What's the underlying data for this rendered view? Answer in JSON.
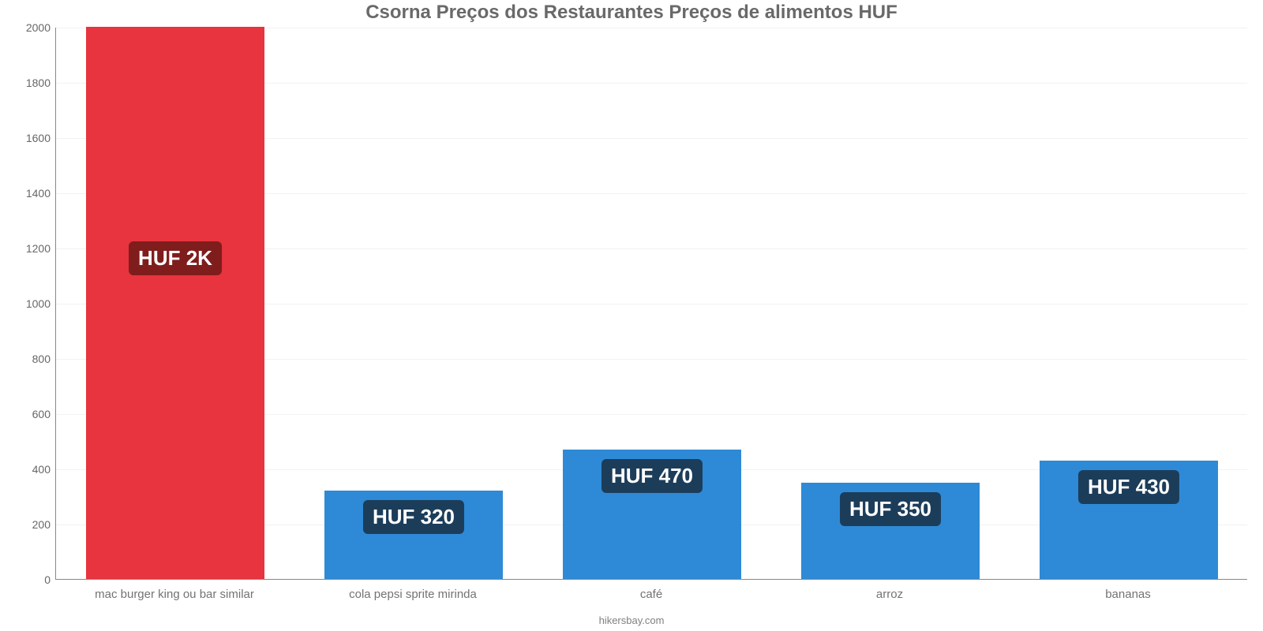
{
  "chart": {
    "type": "bar",
    "title": "Csorna Preços dos Restaurantes Preços de alimentos HUF",
    "title_fontsize": 24,
    "title_color": "#696969",
    "footer": "hikersbay.com",
    "footer_fontsize": 13,
    "footer_color": "#808080",
    "background_color": "#ffffff",
    "grid_color": "#f2f2f2",
    "axis_color": "#888888",
    "ylim": [
      0,
      2000
    ],
    "ytick_step": 200,
    "ytick_fontsize": 14,
    "ytick_color": "#666666",
    "xlabel_fontsize": 15,
    "xlabel_color": "#737373",
    "bar_width_ratio": 0.75,
    "value_label_fontsize": 26,
    "categories": [
      "mac burger king ou bar similar",
      "cola pepsi sprite mirinda",
      "café",
      "arroz",
      "bananas"
    ],
    "values": [
      2000,
      320,
      470,
      350,
      430
    ],
    "value_labels": [
      "HUF 2K",
      "HUF 320",
      "HUF 470",
      "HUF 350",
      "HUF 430"
    ],
    "bar_colors": [
      "#e8343e",
      "#2e8ad6",
      "#2e8ad6",
      "#2e8ad6",
      "#2e8ad6"
    ],
    "badge_colors": [
      "#7f1d1d",
      "#1c3d5a",
      "#1c3d5a",
      "#1c3d5a",
      "#1c3d5a"
    ],
    "yticks": [
      {
        "v": 0,
        "label": "0"
      },
      {
        "v": 200,
        "label": "200"
      },
      {
        "v": 400,
        "label": "400"
      },
      {
        "v": 600,
        "label": "600"
      },
      {
        "v": 800,
        "label": "800"
      },
      {
        "v": 1000,
        "label": "1000"
      },
      {
        "v": 1200,
        "label": "1200"
      },
      {
        "v": 1400,
        "label": "1400"
      },
      {
        "v": 1600,
        "label": "1600"
      },
      {
        "v": 1800,
        "label": "1800"
      },
      {
        "v": 2000,
        "label": "2000"
      }
    ]
  }
}
